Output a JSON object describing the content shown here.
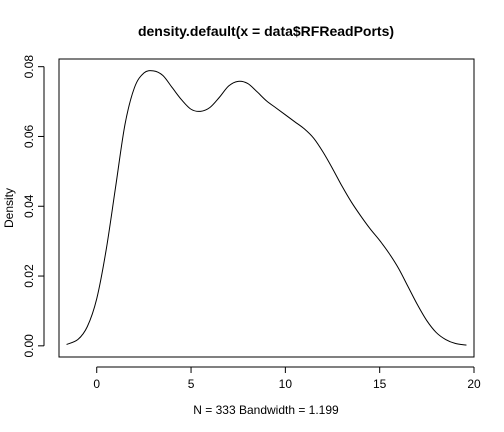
{
  "chart_data": {
    "type": "line",
    "title": "density.default(x = data$RFReadPorts)",
    "xlabel": "N = 333   Bandwidth = 1.199",
    "ylabel": "Density",
    "xlim": [
      -2.0,
      20.0
    ],
    "ylim": [
      -0.0032,
      0.0822
    ],
    "x_ticks": [
      0,
      5,
      10,
      15,
      20
    ],
    "x_tick_labels": [
      "0",
      "5",
      "10",
      "15",
      "20"
    ],
    "y_ticks": [
      0.0,
      0.02,
      0.04,
      0.06,
      0.08
    ],
    "y_tick_labels": [
      "0.00",
      "0.02",
      "0.04",
      "0.06",
      "0.08"
    ],
    "grid": false,
    "series": [
      {
        "color": "#000000",
        "x": [
          -1.6,
          -1.0,
          -0.5,
          0.0,
          0.5,
          1.0,
          1.5,
          2.0,
          2.5,
          3.0,
          3.5,
          4.0,
          4.5,
          5.0,
          5.5,
          6.0,
          6.5,
          7.0,
          7.5,
          8.0,
          8.5,
          9.0,
          9.5,
          10.0,
          10.5,
          11.0,
          11.5,
          12.0,
          12.5,
          13.0,
          13.5,
          14.0,
          14.5,
          15.0,
          15.5,
          16.0,
          16.5,
          17.0,
          17.5,
          18.0,
          18.5,
          19.0,
          19.6
        ],
        "y": [
          0.0004,
          0.0018,
          0.0055,
          0.0135,
          0.0275,
          0.0455,
          0.0635,
          0.074,
          0.0782,
          0.0788,
          0.0775,
          0.074,
          0.0705,
          0.0678,
          0.0672,
          0.0683,
          0.0712,
          0.0745,
          0.0758,
          0.0752,
          0.0728,
          0.0702,
          0.0682,
          0.0662,
          0.0642,
          0.0622,
          0.0595,
          0.0555,
          0.0508,
          0.0458,
          0.0412,
          0.0372,
          0.0335,
          0.0302,
          0.0265,
          0.0222,
          0.017,
          0.0118,
          0.0072,
          0.0038,
          0.0018,
          0.0007,
          0.0002
        ]
      }
    ]
  }
}
